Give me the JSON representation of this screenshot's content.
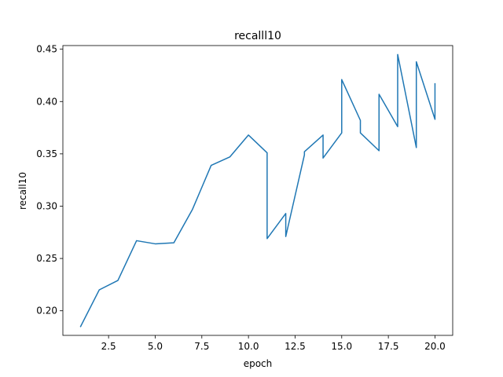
{
  "chart_data": {
    "type": "line",
    "title": "recalll10",
    "xlabel": "epoch",
    "ylabel": "recall10",
    "xlim": [
      0.05,
      20.95
    ],
    "ylim": [
      0.1765,
      0.4535
    ],
    "xticks": [
      2.5,
      5.0,
      7.5,
      10.0,
      12.5,
      15.0,
      17.5,
      20.0
    ],
    "xtick_labels": [
      "2.5",
      "5.0",
      "7.5",
      "10.0",
      "12.5",
      "15.0",
      "17.5",
      "20.0"
    ],
    "yticks": [
      0.2,
      0.25,
      0.3,
      0.35,
      0.4,
      0.45
    ],
    "ytick_labels": [
      "0.20",
      "0.25",
      "0.30",
      "0.35",
      "0.40",
      "0.45"
    ],
    "grid": false,
    "series": [
      {
        "color": "#1f77b4",
        "x": [
          1,
          2,
          3,
          4,
          5,
          6,
          7,
          8,
          9,
          10,
          11,
          11,
          12,
          12,
          13,
          13,
          14,
          14,
          15,
          15,
          16,
          16,
          17,
          17,
          18,
          18,
          19,
          19,
          20,
          20
        ],
        "y": [
          0.185,
          0.22,
          0.229,
          0.267,
          0.264,
          0.265,
          0.297,
          0.339,
          0.347,
          0.368,
          0.351,
          0.269,
          0.293,
          0.271,
          0.349,
          0.352,
          0.368,
          0.346,
          0.37,
          0.421,
          0.382,
          0.37,
          0.353,
          0.407,
          0.376,
          0.445,
          0.356,
          0.438,
          0.383,
          0.417
        ]
      }
    ]
  }
}
